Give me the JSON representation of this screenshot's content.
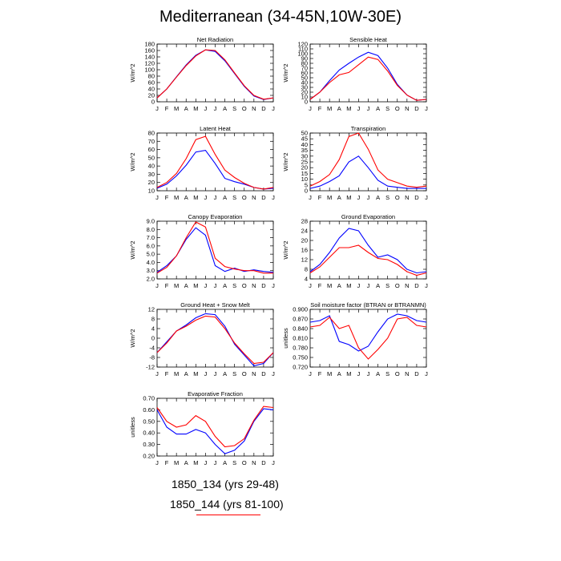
{
  "title": "Mediterranean (34-45N,10W-30E)",
  "colors": {
    "case1": "#0000ff",
    "case2": "#ff0000"
  },
  "legend": [
    {
      "label": "1850_134 (yrs 29-48)",
      "color": "#0000ff"
    },
    {
      "label": "1850_144 (yrs 81-100)",
      "color": "#ff0000"
    }
  ],
  "chart_data": [
    {
      "type": "line",
      "title": "Net Radiation",
      "ylabel": "W/m^2",
      "categories": [
        "J",
        "F",
        "M",
        "A",
        "M",
        "J",
        "J",
        "A",
        "S",
        "O",
        "N",
        "D",
        "J"
      ],
      "ylim": [
        0,
        180
      ],
      "yticks": [
        "0",
        "20",
        "40",
        "60",
        "80",
        "100",
        "120",
        "140",
        "160",
        "180"
      ],
      "series": [
        {
          "values": [
            12,
            40,
            78,
            115,
            145,
            162,
            157,
            128,
            88,
            48,
            18,
            7,
            12
          ]
        },
        {
          "values": [
            12,
            40,
            77,
            113,
            143,
            162,
            160,
            131,
            90,
            50,
            20,
            8,
            12
          ]
        }
      ]
    },
    {
      "type": "line",
      "title": "Sensible Heat",
      "ylabel": "W/m^2",
      "categories": [
        "J",
        "F",
        "M",
        "A",
        "M",
        "J",
        "J",
        "A",
        "S",
        "O",
        "N",
        "D",
        "J"
      ],
      "ylim": [
        0,
        120
      ],
      "yticks": [
        "0",
        "10",
        "20",
        "30",
        "40",
        "50",
        "60",
        "70",
        "80",
        "90",
        "100",
        "110",
        "120"
      ],
      "series": [
        {
          "values": [
            5,
            20,
            44,
            66,
            80,
            93,
            103,
            96,
            70,
            36,
            14,
            3,
            5
          ]
        },
        {
          "values": [
            5,
            20,
            40,
            56,
            61,
            77,
            93,
            88,
            64,
            34,
            14,
            3,
            5
          ]
        }
      ]
    },
    {
      "type": "line",
      "title": "Latent Heat",
      "ylabel": "W/m^2",
      "categories": [
        "J",
        "F",
        "M",
        "A",
        "M",
        "J",
        "J",
        "A",
        "S",
        "O",
        "N",
        "D",
        "J"
      ],
      "ylim": [
        10,
        80
      ],
      "yticks": [
        "10",
        "20",
        "30",
        "40",
        "50",
        "60",
        "70",
        "80"
      ],
      "series": [
        {
          "values": [
            13,
            18,
            28,
            41,
            57,
            59,
            43,
            25,
            21,
            18,
            14,
            12,
            13
          ]
        },
        {
          "values": [
            14,
            20,
            31,
            49,
            72,
            76,
            54,
            35,
            26,
            19,
            14,
            12,
            14
          ]
        }
      ]
    },
    {
      "type": "line",
      "title": "Transpiration",
      "ylabel": "W/m^2",
      "categories": [
        "J",
        "F",
        "M",
        "A",
        "M",
        "J",
        "J",
        "A",
        "S",
        "O",
        "N",
        "D",
        "J"
      ],
      "ylim": [
        0,
        50
      ],
      "yticks": [
        "0",
        "5",
        "10",
        "15",
        "20",
        "25",
        "30",
        "35",
        "40",
        "45",
        "50"
      ],
      "series": [
        {
          "values": [
            2,
            4,
            8,
            13,
            25,
            30,
            20,
            9,
            4,
            3,
            2,
            2,
            2
          ]
        },
        {
          "values": [
            4,
            8,
            14,
            27,
            47,
            50,
            36,
            18,
            10,
            7,
            4,
            3,
            4
          ]
        }
      ]
    },
    {
      "type": "line",
      "title": "Canopy Evaporation",
      "ylabel": "W/m^2",
      "categories": [
        "J",
        "F",
        "M",
        "A",
        "M",
        "J",
        "J",
        "A",
        "S",
        "O",
        "N",
        "D",
        "J"
      ],
      "ylim": [
        2.0,
        9.0
      ],
      "yticks": [
        "2.0",
        "3.0",
        "4.0",
        "5.0",
        "6.0",
        "7.0",
        "8.0",
        "9.0"
      ],
      "series": [
        {
          "values": [
            2.8,
            3.6,
            4.8,
            6.8,
            8.2,
            7.3,
            3.6,
            2.9,
            3.3,
            2.9,
            3.1,
            2.9,
            2.8
          ]
        },
        {
          "values": [
            2.7,
            3.4,
            4.8,
            7.0,
            8.9,
            8.3,
            4.5,
            3.5,
            3.2,
            3.0,
            3.0,
            2.7,
            2.7
          ]
        }
      ]
    },
    {
      "type": "line",
      "title": "Ground Evaporation",
      "ylabel": "W/m^2",
      "categories": [
        "J",
        "F",
        "M",
        "A",
        "M",
        "J",
        "J",
        "A",
        "S",
        "O",
        "N",
        "D",
        "J"
      ],
      "ylim": [
        4,
        28
      ],
      "yticks": [
        "4",
        "8",
        "12",
        "16",
        "20",
        "24",
        "28"
      ],
      "series": [
        {
          "values": [
            7,
            10,
            15,
            21,
            25,
            24,
            18,
            13,
            14,
            12,
            8,
            6.5,
            7
          ]
        },
        {
          "values": [
            6.5,
            9,
            13,
            17,
            17,
            18,
            15,
            12.5,
            12,
            10,
            7,
            5.5,
            6.5
          ]
        }
      ]
    },
    {
      "type": "line",
      "title": "Ground Heat + Snow Melt",
      "ylabel": "W/m^2",
      "categories": [
        "J",
        "F",
        "M",
        "A",
        "M",
        "J",
        "J",
        "A",
        "S",
        "O",
        "N",
        "D",
        "J"
      ],
      "ylim": [
        -12,
        12
      ],
      "yticks": [
        "-12",
        "-8",
        "-4",
        "0",
        "4",
        "8",
        "12"
      ],
      "series": [
        {
          "values": [
            -6,
            -1.5,
            3,
            5.5,
            8.5,
            10.2,
            9.8,
            5,
            -2.5,
            -7,
            -11.5,
            -10.5,
            -6
          ]
        },
        {
          "values": [
            -6,
            -2,
            3,
            5,
            7.5,
            9.2,
            8.8,
            4,
            -2,
            -6.5,
            -10.5,
            -10,
            -6
          ]
        }
      ]
    },
    {
      "type": "line",
      "title": "Soil moisture factor (BTRAN or BTRANMN)",
      "ylabel": "unitless",
      "categories": [
        "J",
        "F",
        "M",
        "A",
        "M",
        "J",
        "J",
        "A",
        "S",
        "O",
        "N",
        "D",
        "J"
      ],
      "ylim": [
        0.72,
        0.9
      ],
      "yticks": [
        "0.720",
        "0.750",
        "0.780",
        "0.810",
        "0.840",
        "0.870",
        "0.900"
      ],
      "series": [
        {
          "values": [
            0.86,
            0.865,
            0.88,
            0.8,
            0.79,
            0.77,
            0.785,
            0.83,
            0.87,
            0.885,
            0.88,
            0.865,
            0.86
          ]
        },
        {
          "values": [
            0.845,
            0.85,
            0.875,
            0.84,
            0.85,
            0.78,
            0.745,
            0.775,
            0.81,
            0.87,
            0.875,
            0.85,
            0.845
          ]
        }
      ]
    },
    {
      "type": "line",
      "title": "Evaporative Fraction",
      "ylabel": "unitless",
      "categories": [
        "J",
        "F",
        "M",
        "A",
        "M",
        "J",
        "J",
        "A",
        "S",
        "O",
        "N",
        "D",
        "J"
      ],
      "ylim": [
        0.2,
        0.7
      ],
      "yticks": [
        "0.20",
        "0.30",
        "0.40",
        "0.50",
        "0.60",
        "0.70"
      ],
      "series": [
        {
          "values": [
            0.6,
            0.45,
            0.39,
            0.39,
            0.43,
            0.4,
            0.3,
            0.22,
            0.25,
            0.33,
            0.5,
            0.61,
            0.6
          ]
        },
        {
          "values": [
            0.62,
            0.5,
            0.45,
            0.47,
            0.55,
            0.5,
            0.37,
            0.28,
            0.29,
            0.35,
            0.51,
            0.63,
            0.62
          ]
        }
      ]
    }
  ]
}
